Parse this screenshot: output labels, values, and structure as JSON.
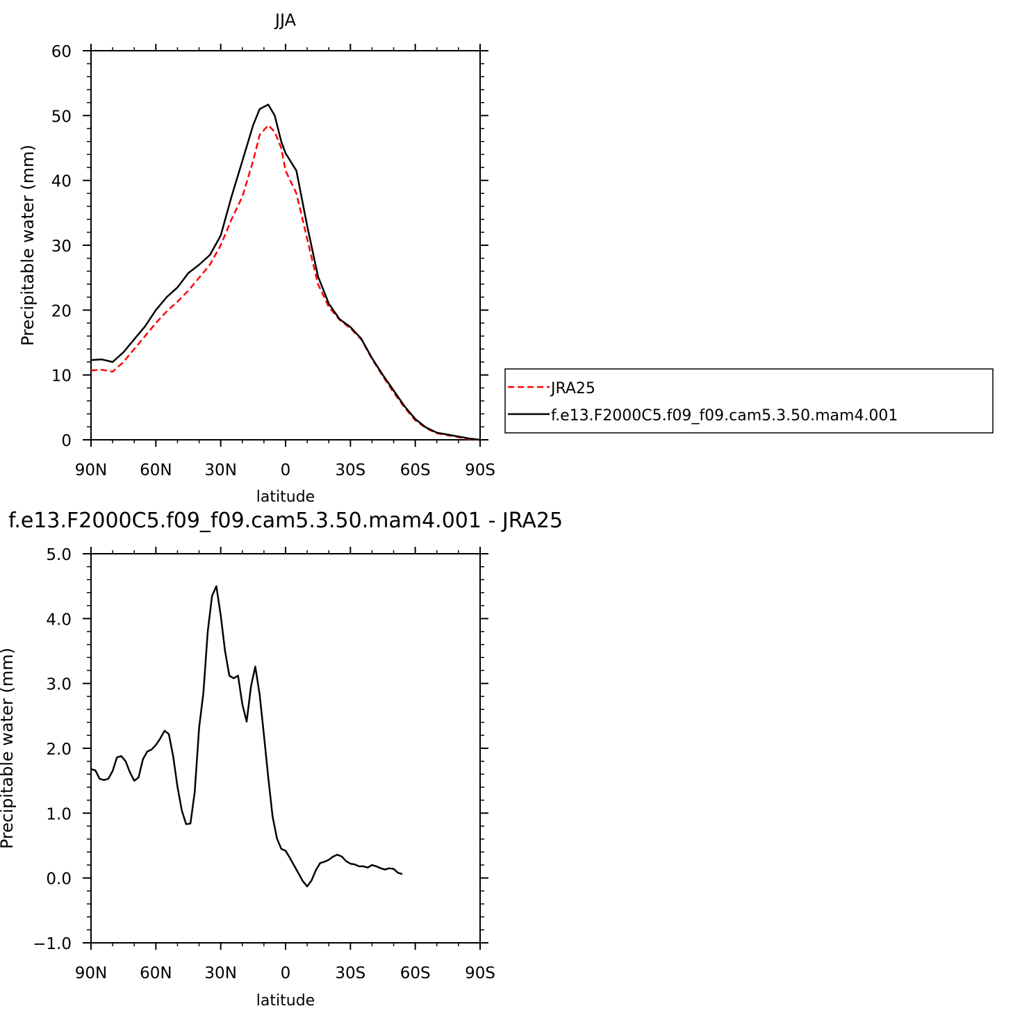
{
  "chart_data": [
    {
      "type": "line",
      "title": "JJA",
      "xlabel": "latitude",
      "ylabel": "Precipitable water (mm)",
      "xlim": [
        -90,
        90
      ],
      "ylim": [
        0,
        60
      ],
      "x_ticks": [
        {
          "value": -90,
          "label": "90N"
        },
        {
          "value": -60,
          "label": "60N"
        },
        {
          "value": -30,
          "label": "30N"
        },
        {
          "value": 0,
          "label": "0"
        },
        {
          "value": 30,
          "label": "30S"
        },
        {
          "value": 60,
          "label": "60S"
        },
        {
          "value": 90,
          "label": "90S"
        }
      ],
      "y_ticks": [
        {
          "value": 0,
          "label": "0"
        },
        {
          "value": 10,
          "label": "10"
        },
        {
          "value": 20,
          "label": "20"
        },
        {
          "value": 30,
          "label": "30"
        },
        {
          "value": 40,
          "label": "40"
        },
        {
          "value": 50,
          "label": "50"
        },
        {
          "value": 60,
          "label": "60"
        }
      ],
      "legend_placement": "right",
      "series": [
        {
          "name": "JRA25",
          "color": "#ff0000",
          "dash": "dashed",
          "points": [
            [
              -90,
              10.7
            ],
            [
              -85,
              10.8
            ],
            [
              -80,
              10.5
            ],
            [
              -75,
              12
            ],
            [
              -70,
              14
            ],
            [
              -65,
              16
            ],
            [
              -60,
              18
            ],
            [
              -55,
              19.8
            ],
            [
              -50,
              21.3
            ],
            [
              -45,
              23
            ],
            [
              -40,
              25
            ],
            [
              -35,
              27
            ],
            [
              -30,
              30
            ],
            [
              -25,
              34
            ],
            [
              -20,
              37.5
            ],
            [
              -15,
              43
            ],
            [
              -12,
              47
            ],
            [
              -8,
              48.5
            ],
            [
              -5,
              47.5
            ],
            [
              -2,
              45
            ],
            [
              0,
              41.5
            ],
            [
              5,
              38
            ],
            [
              10,
              31
            ],
            [
              15,
              24
            ],
            [
              20,
              20.5
            ],
            [
              25,
              18.5
            ],
            [
              30,
              17.2
            ],
            [
              35,
              15.5
            ],
            [
              40,
              12.5
            ],
            [
              45,
              9.8
            ],
            [
              50,
              7.3
            ],
            [
              55,
              5
            ],
            [
              60,
              3
            ],
            [
              65,
              1.8
            ],
            [
              70,
              1
            ],
            [
              75,
              0.7
            ],
            [
              80,
              0.4
            ],
            [
              85,
              0.1
            ],
            [
              90,
              0
            ]
          ]
        },
        {
          "name": "f.e13.F2000C5.f09_f09.cam5.3.50.mam4.001",
          "color": "#000000",
          "dash": "solid",
          "points": [
            [
              -90,
              12.3
            ],
            [
              -85,
              12.4
            ],
            [
              -80,
              12
            ],
            [
              -75,
              13.5
            ],
            [
              -70,
              15.5
            ],
            [
              -65,
              17.5
            ],
            [
              -60,
              20
            ],
            [
              -55,
              22
            ],
            [
              -50,
              23.5
            ],
            [
              -45,
              25.7
            ],
            [
              -40,
              27
            ],
            [
              -35,
              28.5
            ],
            [
              -30,
              31.5
            ],
            [
              -25,
              37.5
            ],
            [
              -20,
              43
            ],
            [
              -15,
              48.5
            ],
            [
              -12,
              51
            ],
            [
              -8,
              51.7
            ],
            [
              -5,
              50
            ],
            [
              -2,
              46
            ],
            [
              0,
              44.2
            ],
            [
              5,
              41.5
            ],
            [
              10,
              33
            ],
            [
              15,
              25.2
            ],
            [
              20,
              21
            ],
            [
              25,
              18.6
            ],
            [
              30,
              17.4
            ],
            [
              35,
              15.6
            ],
            [
              40,
              12.6
            ],
            [
              45,
              10
            ],
            [
              50,
              7.6
            ],
            [
              55,
              5.2
            ],
            [
              60,
              3.2
            ],
            [
              65,
              1.9
            ],
            [
              70,
              1.1
            ],
            [
              75,
              0.8
            ],
            [
              80,
              0.5
            ],
            [
              85,
              0.2
            ],
            [
              90,
              0
            ]
          ]
        }
      ]
    },
    {
      "type": "line",
      "title": "f.e13.F2000C5.f09_f09.cam5.3.50.mam4.001 - JRA25",
      "xlabel": "latitude",
      "ylabel": "Precipitable water (mm)",
      "xlim": [
        -90,
        90
      ],
      "ylim": [
        -1,
        5
      ],
      "x_ticks": [
        {
          "value": -90,
          "label": "90N"
        },
        {
          "value": -60,
          "label": "60N"
        },
        {
          "value": -30,
          "label": "30N"
        },
        {
          "value": 0,
          "label": "0"
        },
        {
          "value": 30,
          "label": "30S"
        },
        {
          "value": 60,
          "label": "60S"
        },
        {
          "value": 90,
          "label": "90S"
        }
      ],
      "y_ticks": [
        {
          "value": -1,
          "label": "−1.0"
        },
        {
          "value": 0,
          "label": "0.0"
        },
        {
          "value": 1,
          "label": "1.0"
        },
        {
          "value": 2,
          "label": "2.0"
        },
        {
          "value": 3,
          "label": "3.0"
        },
        {
          "value": 4,
          "label": "4.0"
        },
        {
          "value": 5,
          "label": "5.0"
        }
      ],
      "series": [
        {
          "color": "#000000",
          "dash": "solid",
          "points": [
            [
              -90,
              1.68
            ],
            [
              -88,
              1.66
            ],
            [
              -86,
              1.53
            ],
            [
              -84,
              1.51
            ],
            [
              -82,
              1.53
            ],
            [
              -80,
              1.65
            ],
            [
              -78,
              1.86
            ],
            [
              -76,
              1.88
            ],
            [
              -74,
              1.8
            ],
            [
              -72,
              1.63
            ],
            [
              -70,
              1.5
            ],
            [
              -68,
              1.55
            ],
            [
              -66,
              1.83
            ],
            [
              -64,
              1.95
            ],
            [
              -62,
              1.98
            ],
            [
              -60,
              2.05
            ],
            [
              -58,
              2.15
            ],
            [
              -56,
              2.27
            ],
            [
              -54,
              2.22
            ],
            [
              -52,
              1.88
            ],
            [
              -50,
              1.41
            ],
            [
              -48,
              1.04
            ],
            [
              -46,
              0.83
            ],
            [
              -44,
              0.84
            ],
            [
              -42,
              1.33
            ],
            [
              -40,
              2.32
            ],
            [
              -38,
              2.86
            ],
            [
              -36,
              3.8
            ],
            [
              -34,
              4.35
            ],
            [
              -32,
              4.5
            ],
            [
              -30,
              4.05
            ],
            [
              -28,
              3.5
            ],
            [
              -26,
              3.12
            ],
            [
              -24,
              3.08
            ],
            [
              -22,
              3.12
            ],
            [
              -20,
              2.68
            ],
            [
              -18,
              2.41
            ],
            [
              -16,
              2.95
            ],
            [
              -14,
              3.26
            ],
            [
              -12,
              2.83
            ],
            [
              -10,
              2.2
            ],
            [
              -8,
              1.55
            ],
            [
              -6,
              0.95
            ],
            [
              -4,
              0.61
            ],
            [
              -2,
              0.45
            ],
            [
              0,
              0.42
            ],
            [
              2,
              0.31
            ],
            [
              4,
              0.19
            ],
            [
              6,
              0.07
            ],
            [
              8,
              -0.05
            ],
            [
              10,
              -0.13
            ],
            [
              12,
              -0.04
            ],
            [
              14,
              0.12
            ],
            [
              16,
              0.23
            ],
            [
              18,
              0.25
            ],
            [
              20,
              0.28
            ],
            [
              22,
              0.33
            ],
            [
              24,
              0.36
            ],
            [
              26,
              0.33
            ],
            [
              28,
              0.26
            ],
            [
              30,
              0.22
            ],
            [
              32,
              0.21
            ],
            [
              34,
              0.18
            ],
            [
              36,
              0.18
            ],
            [
              38,
              0.16
            ],
            [
              40,
              0.2
            ],
            [
              42,
              0.18
            ],
            [
              44,
              0.15
            ],
            [
              46,
              0.13
            ],
            [
              48,
              0.15
            ],
            [
              50,
              0.14
            ],
            [
              52,
              0.08
            ],
            [
              54,
              0.06
            ]
          ]
        }
      ]
    }
  ]
}
